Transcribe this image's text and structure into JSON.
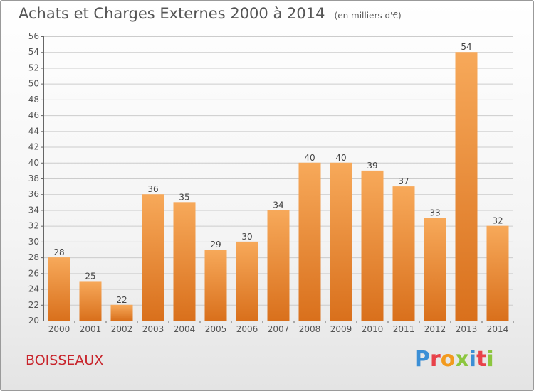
{
  "header": {
    "title": "Achats et Charges Externes 2000 à 2014",
    "subtitle": "(en milliers d'€)"
  },
  "footer": {
    "commune": "BOISSEAUX",
    "logo_text": "Proxiti",
    "logo_colors": [
      "#3b8fd6",
      "#e8424a",
      "#f29a1e",
      "#8cc63f",
      "#3b8fd6",
      "#e8424a",
      "#8cc63f"
    ]
  },
  "colors": {
    "bar_light": "#f7a95a",
    "bar_dark": "#d9701c",
    "grid": "#cccccc",
    "axis": "#666666"
  },
  "chart_data": {
    "type": "bar",
    "title": "Achats et Charges Externes 2000 à 2014",
    "subtitle": "(en milliers d'€)",
    "xlabel": "",
    "ylabel": "",
    "categories": [
      "2000",
      "2001",
      "2002",
      "2003",
      "2004",
      "2005",
      "2006",
      "2007",
      "2008",
      "2009",
      "2010",
      "2011",
      "2012",
      "2013",
      "2014"
    ],
    "values": [
      28,
      25,
      22,
      36,
      35,
      29,
      30,
      34,
      40,
      40,
      39,
      37,
      33,
      54,
      32
    ],
    "ylim": [
      20,
      56
    ],
    "yticks": [
      20,
      22,
      24,
      26,
      28,
      30,
      32,
      34,
      36,
      38,
      40,
      42,
      44,
      46,
      48,
      50,
      52,
      54,
      56
    ],
    "grid": true,
    "data_labels": true
  }
}
